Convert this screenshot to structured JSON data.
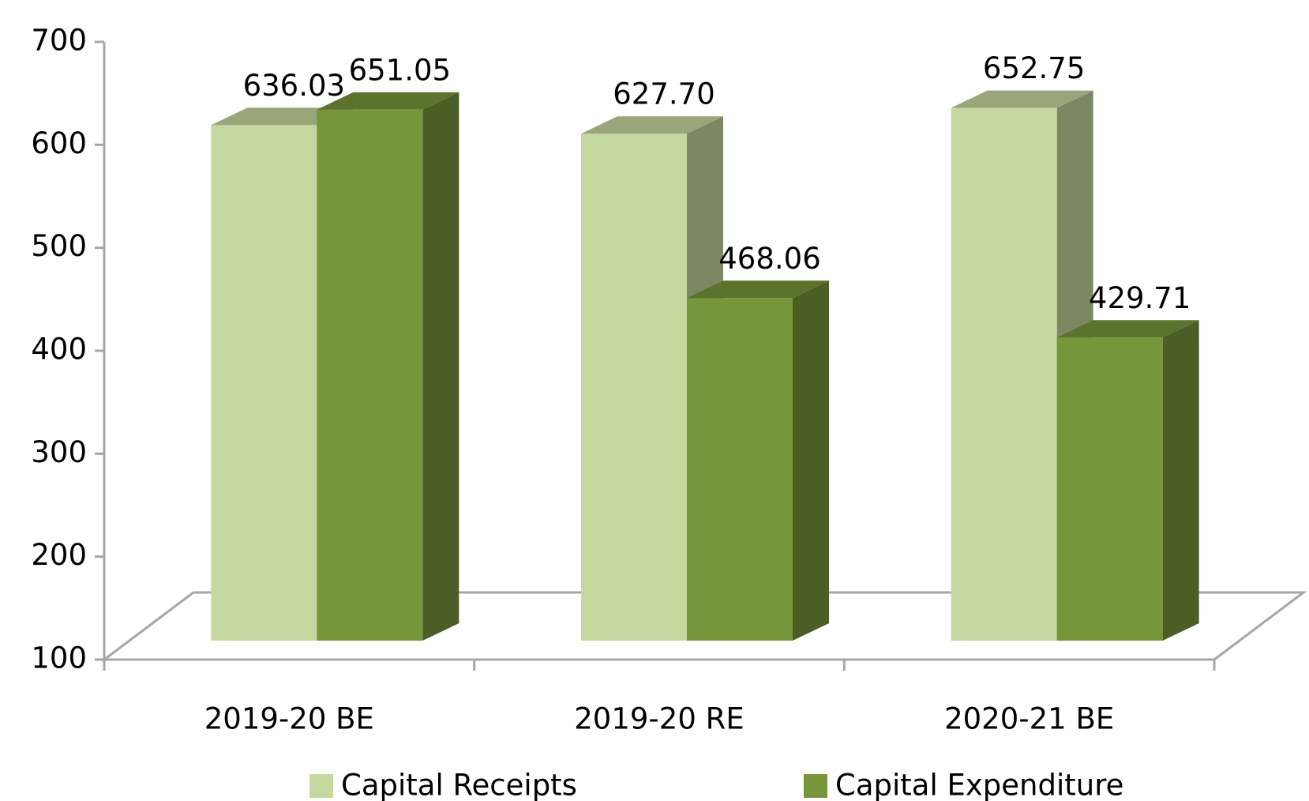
{
  "chart_data": {
    "type": "bar3d",
    "categories": [
      "2019-20 BE",
      "2019-20 RE",
      "2020-21 BE"
    ],
    "series": [
      {
        "name": "Capital Receipts",
        "color": "#c5d89f",
        "values": [
          636.03,
          627.7,
          652.75
        ],
        "value_labels": [
          "636.03",
          "627.70",
          "652.75"
        ]
      },
      {
        "name": "Capital Expenditure",
        "color": "#77953a",
        "values": [
          651.05,
          468.06,
          429.71
        ],
        "value_labels": [
          "651.05",
          "468.06",
          "429.71"
        ]
      }
    ],
    "ylim": [
      100,
      700
    ],
    "yticks": [
      100,
      200,
      300,
      400,
      500,
      600,
      700
    ],
    "legend": "bottom"
  }
}
